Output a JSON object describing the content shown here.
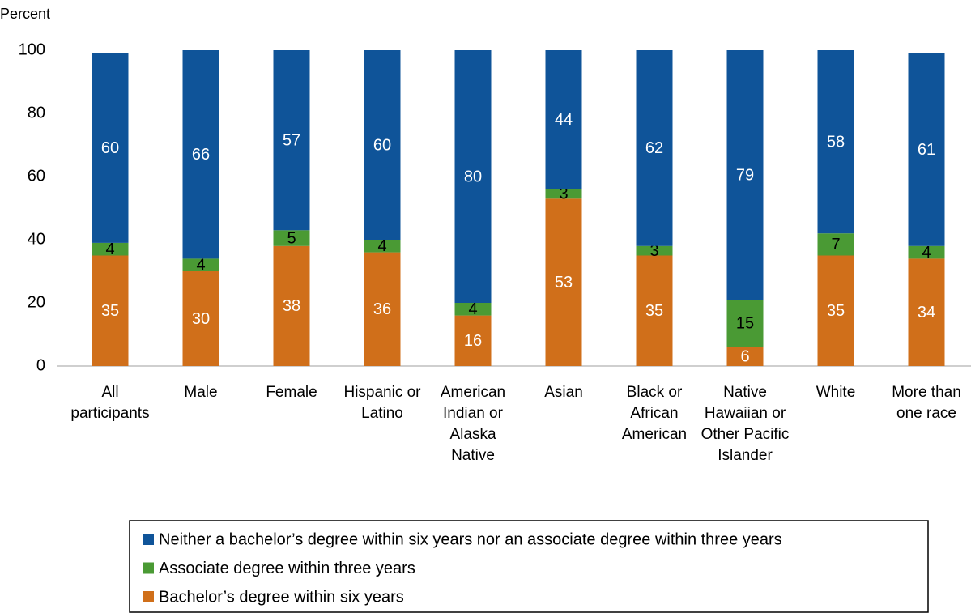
{
  "chart_data": {
    "type": "stacked_bar",
    "y_label": "Percent",
    "categories": [
      "All participants",
      "Male",
      "Female",
      "Hispanic or Latino",
      "American Indian or Alaska Native",
      "Asian",
      "Black or African American",
      "Native Hawaiian or Other Pacific Islander",
      "White",
      "More than one race"
    ],
    "series": [
      {
        "name": "Neither a bachelor’s degree within six years nor an associate degree within three years",
        "color": "#0f5499",
        "label_color": "#ffffff",
        "values": [
          60,
          66,
          57,
          60,
          80,
          44,
          62,
          79,
          58,
          61
        ]
      },
      {
        "name": "Associate degree within three years",
        "color": "#4a9a34",
        "label_color": "#000000",
        "values": [
          4,
          4,
          5,
          4,
          4,
          3,
          3,
          15,
          7,
          4
        ]
      },
      {
        "name": "Bachelor’s degree within six years",
        "color": "#d06f1a",
        "label_color": "#ffffff",
        "values": [
          35,
          30,
          38,
          36,
          16,
          53,
          35,
          6,
          35,
          34
        ]
      }
    ],
    "ylim": [
      0,
      100
    ],
    "yticks": [
      0,
      20,
      40,
      60,
      80,
      100
    ],
    "grid": false
  }
}
